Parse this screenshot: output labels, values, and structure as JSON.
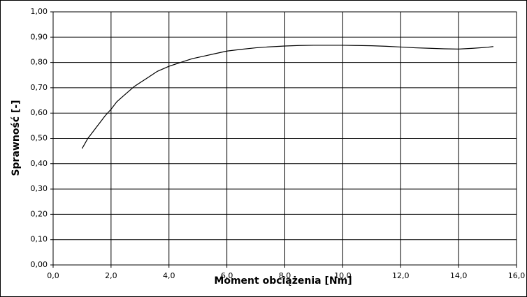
{
  "chart_data": {
    "type": "line",
    "x_label": "Moment obciążenia [Nm]",
    "y_label": "Sprawność [-]",
    "x": [
      1.0,
      1.2,
      1.4,
      1.6,
      1.8,
      2.0,
      2.2,
      2.4,
      2.6,
      2.8,
      3.0,
      3.2,
      3.4,
      3.6,
      3.8,
      4.0,
      4.4,
      4.8,
      5.2,
      5.6,
      6.0,
      6.5,
      7.0,
      7.5,
      8.0,
      8.5,
      9.0,
      9.5,
      10.0,
      10.5,
      11.0,
      11.5,
      12.0,
      12.5,
      13.0,
      13.5,
      14.0,
      14.5,
      15.0,
      15.2
    ],
    "values": [
      0.46,
      0.5,
      0.53,
      0.56,
      0.59,
      0.615,
      0.645,
      0.665,
      0.685,
      0.705,
      0.72,
      0.735,
      0.75,
      0.765,
      0.775,
      0.785,
      0.8,
      0.815,
      0.825,
      0.835,
      0.845,
      0.852,
      0.858,
      0.862,
      0.865,
      0.867,
      0.868,
      0.868,
      0.868,
      0.867,
      0.866,
      0.864,
      0.861,
      0.858,
      0.856,
      0.854,
      0.853,
      0.856,
      0.86,
      0.863
    ],
    "color": "#000000",
    "xlim": [
      0,
      16
    ],
    "ylim": [
      0,
      1
    ],
    "xticks": [
      {
        "value": 0,
        "label": "0,0"
      },
      {
        "value": 2,
        "label": "2,0"
      },
      {
        "value": 4,
        "label": "4,0"
      },
      {
        "value": 6,
        "label": "6,0"
      },
      {
        "value": 8,
        "label": "8,0"
      },
      {
        "value": 10,
        "label": "10,0"
      },
      {
        "value": 12,
        "label": "12,0"
      },
      {
        "value": 14,
        "label": "14,0"
      },
      {
        "value": 16,
        "label": "16,0"
      }
    ],
    "yticks": [
      {
        "value": 0,
        "label": "0,00"
      },
      {
        "value": 0.1,
        "label": "0,10"
      },
      {
        "value": 0.2,
        "label": "0,20"
      },
      {
        "value": 0.3,
        "label": "0,30"
      },
      {
        "value": 0.4,
        "label": "0,40"
      },
      {
        "value": 0.5,
        "label": "0,50"
      },
      {
        "value": 0.6,
        "label": "0,60"
      },
      {
        "value": 0.7,
        "label": "0,70"
      },
      {
        "value": 0.8,
        "label": "0,80"
      },
      {
        "value": 0.9,
        "label": "0,90"
      },
      {
        "value": 1,
        "label": "1,00"
      }
    ],
    "grid": true
  }
}
